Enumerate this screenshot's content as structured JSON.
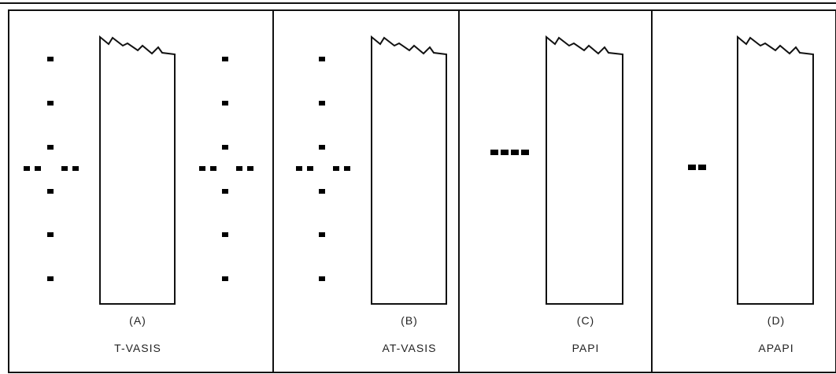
{
  "figure": {
    "page_mark": "’ ‘",
    "panels": [
      {
        "letter": "(A)",
        "name": "T-VASIS"
      },
      {
        "letter": "(B)",
        "name": "AT-VASIS"
      },
      {
        "letter": "(C)",
        "name": "PAPI"
      },
      {
        "letter": "(D)",
        "name": "APAPI"
      }
    ]
  }
}
